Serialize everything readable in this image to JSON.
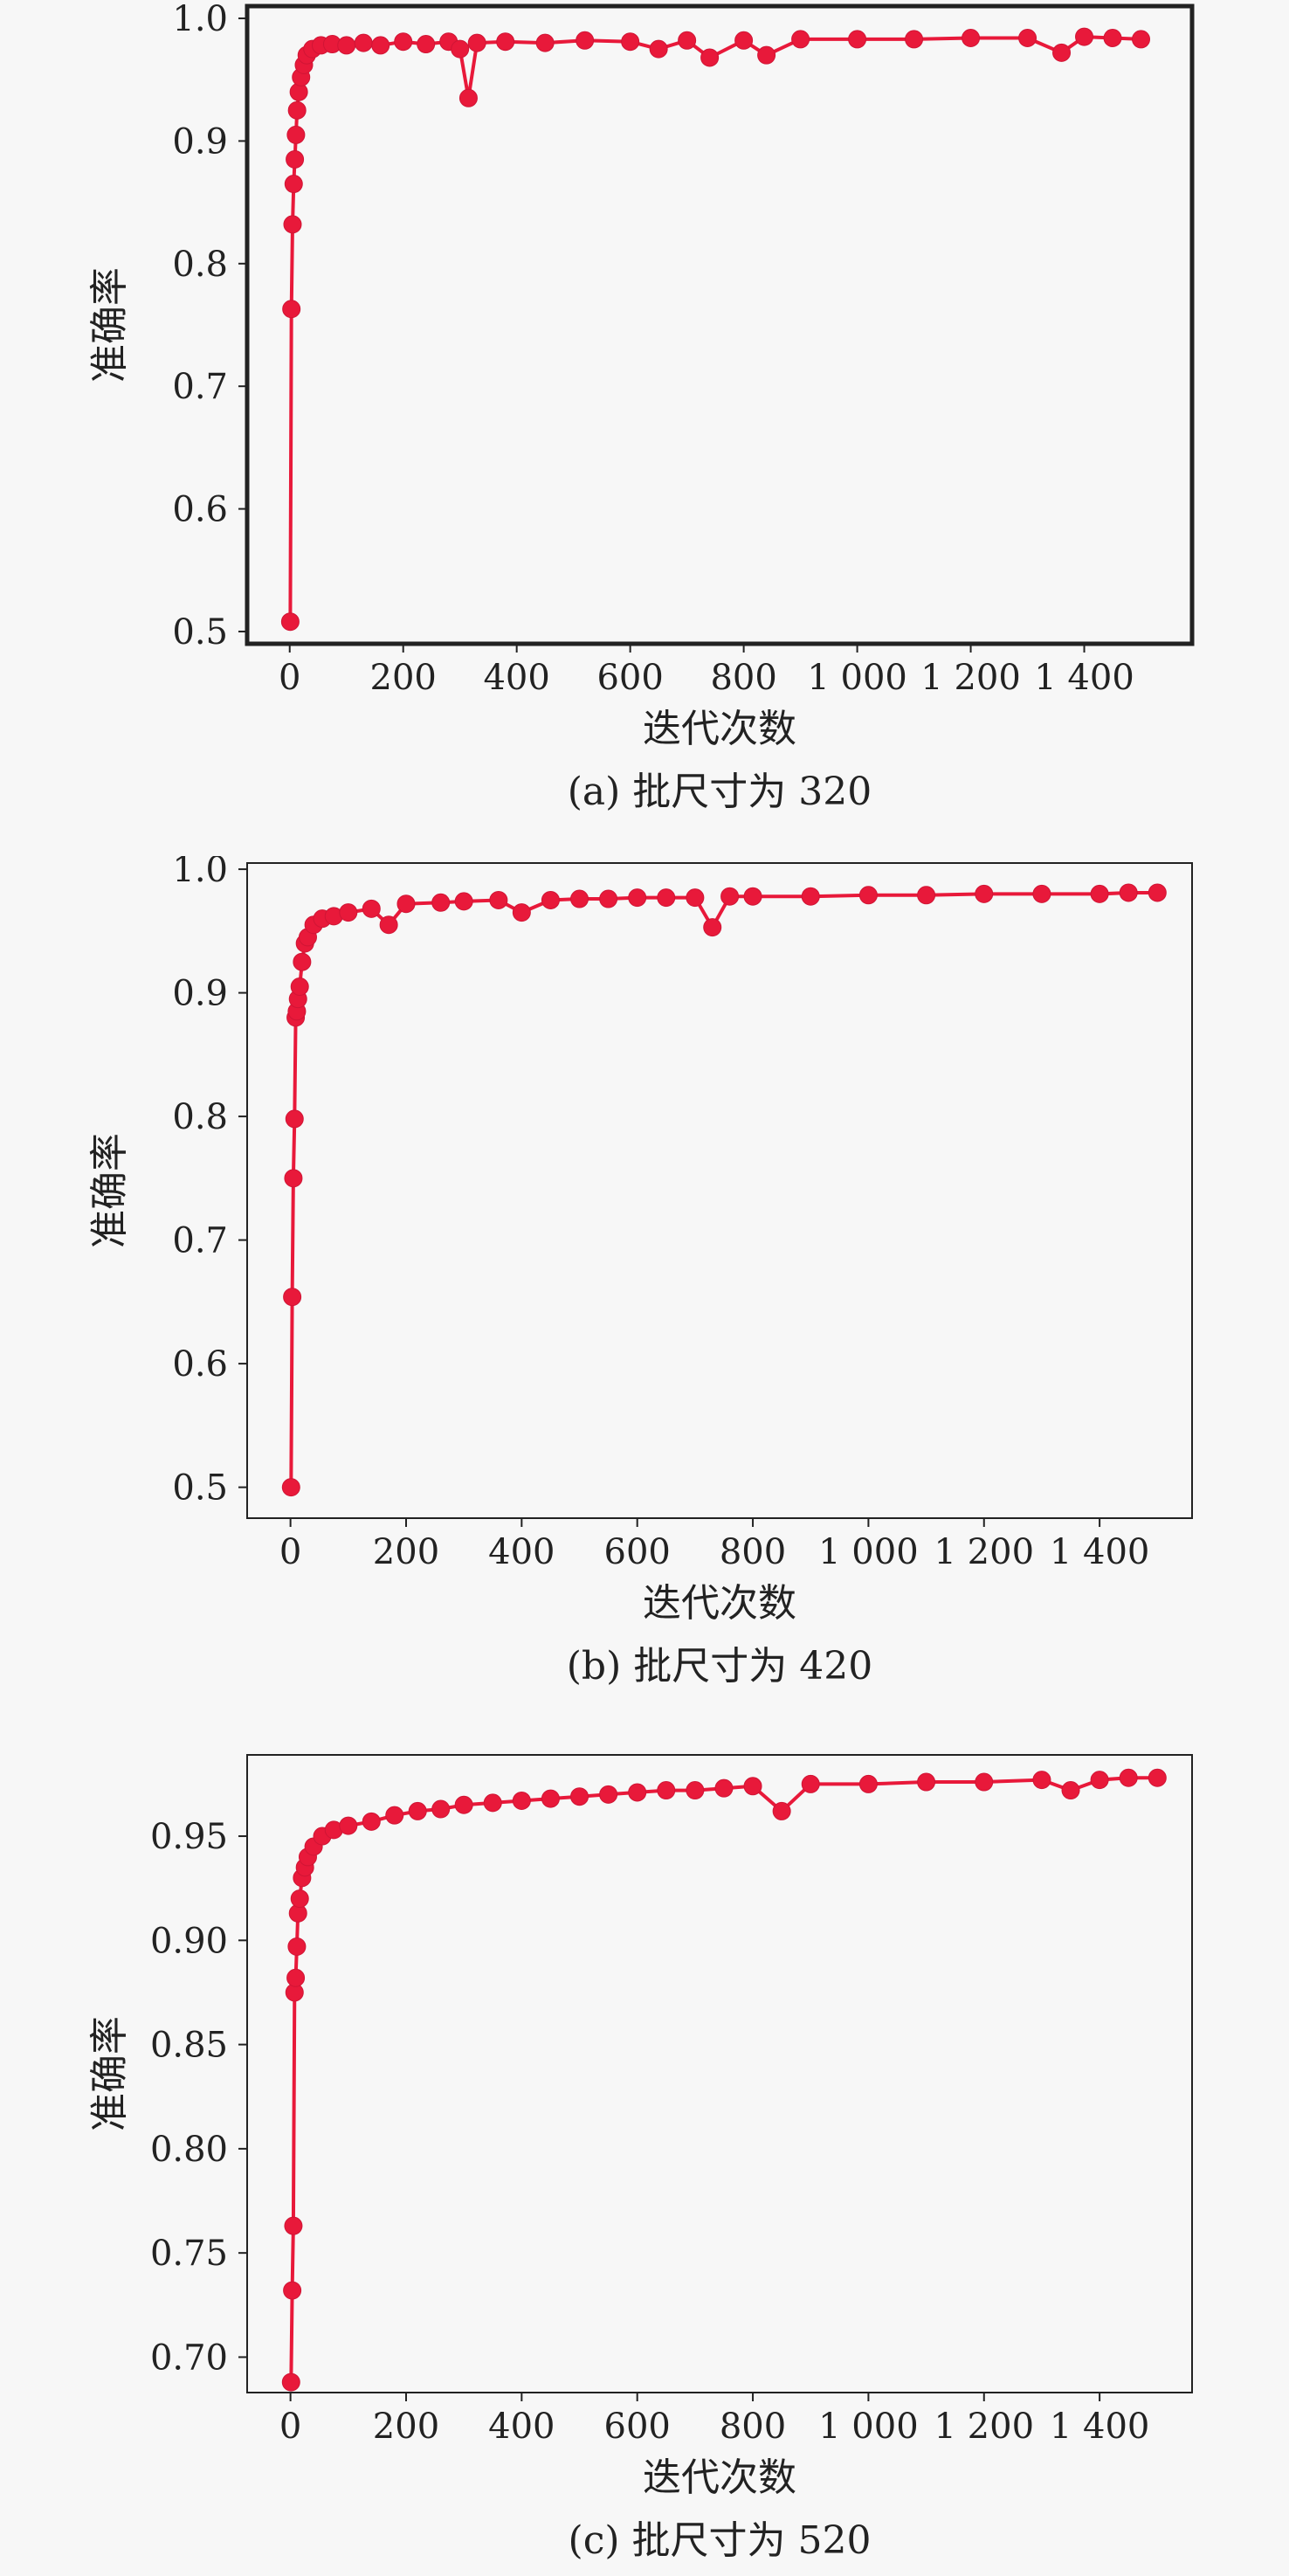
{
  "colors": {
    "series": "#e8193a",
    "axis": "#222222",
    "background": "#f7f7f7"
  },
  "chart_data": [
    {
      "type": "line",
      "caption": "(a) 批尺寸为 320",
      "xlabel": "迭代次数",
      "ylabel": "准确率",
      "xlim": [
        -75,
        1590
      ],
      "ylim": [
        0.49,
        1.01
      ],
      "xticks": [
        0,
        200,
        400,
        600,
        800,
        1000,
        1200,
        1400
      ],
      "xtick_labels": [
        "0",
        "200",
        "400",
        "600",
        "800",
        "1 000",
        "1 200",
        "1 400"
      ],
      "yticks": [
        0.5,
        0.6,
        0.7,
        0.8,
        0.9,
        1.0
      ],
      "ytick_labels": [
        "0.5",
        "0.6",
        "0.7",
        "0.8",
        "0.9",
        "1.0"
      ],
      "grid": false,
      "series": [
        {
          "x": [
            1,
            3,
            5,
            7,
            9,
            11,
            13,
            16,
            20,
            25,
            30,
            40,
            55,
            75,
            100,
            130,
            160,
            200,
            240,
            280,
            300,
            315,
            330,
            380,
            450,
            520,
            600,
            650,
            700,
            740,
            800,
            840,
            900,
            1000,
            1100,
            1200,
            1300,
            1360,
            1400,
            1450,
            1500
          ],
          "y": [
            0.508,
            0.763,
            0.832,
            0.865,
            0.885,
            0.905,
            0.925,
            0.94,
            0.952,
            0.962,
            0.97,
            0.975,
            0.978,
            0.979,
            0.978,
            0.98,
            0.978,
            0.981,
            0.979,
            0.981,
            0.975,
            0.935,
            0.98,
            0.981,
            0.98,
            0.982,
            0.981,
            0.975,
            0.982,
            0.968,
            0.982,
            0.97,
            0.983,
            0.983,
            0.983,
            0.984,
            0.984,
            0.972,
            0.985,
            0.984,
            0.983
          ]
        }
      ]
    },
    {
      "type": "line",
      "caption": "(b) 批尺寸为 420",
      "xlabel": "迭代次数",
      "ylabel": "准确率",
      "xlim": [
        -75,
        1560
      ],
      "ylim": [
        0.475,
        1.005
      ],
      "xticks": [
        0,
        200,
        400,
        600,
        800,
        1000,
        1200,
        1400
      ],
      "xtick_labels": [
        "0",
        "200",
        "400",
        "600",
        "800",
        "1 000",
        "1 200",
        "1 400"
      ],
      "yticks": [
        0.5,
        0.6,
        0.7,
        0.8,
        0.9,
        1.0
      ],
      "ytick_labels": [
        "0.5",
        "0.6",
        "0.7",
        "0.8",
        "0.9",
        "1.0"
      ],
      "grid": false,
      "series": [
        {
          "x": [
            1,
            3,
            5,
            7,
            9,
            11,
            13,
            16,
            20,
            25,
            30,
            40,
            55,
            75,
            100,
            140,
            170,
            200,
            260,
            300,
            360,
            400,
            450,
            500,
            550,
            600,
            650,
            700,
            730,
            760,
            800,
            900,
            1000,
            1100,
            1200,
            1300,
            1400,
            1450,
            1500
          ],
          "y": [
            0.5,
            0.654,
            0.75,
            0.798,
            0.88,
            0.885,
            0.895,
            0.905,
            0.925,
            0.94,
            0.945,
            0.955,
            0.96,
            0.962,
            0.965,
            0.968,
            0.955,
            0.972,
            0.973,
            0.974,
            0.975,
            0.965,
            0.975,
            0.976,
            0.976,
            0.977,
            0.977,
            0.977,
            0.953,
            0.978,
            0.978,
            0.978,
            0.979,
            0.979,
            0.98,
            0.98,
            0.98,
            0.981,
            0.981
          ]
        }
      ]
    },
    {
      "type": "line",
      "caption": "(c) 批尺寸为 520",
      "xlabel": "迭代次数",
      "ylabel": "准确率",
      "xlim": [
        -75,
        1560
      ],
      "ylim": [
        0.683,
        0.989
      ],
      "xticks": [
        0,
        200,
        400,
        600,
        800,
        1000,
        1200,
        1400
      ],
      "xtick_labels": [
        "0",
        "200",
        "400",
        "600",
        "800",
        "1 000",
        "1 200",
        "1 400"
      ],
      "yticks": [
        0.7,
        0.75,
        0.8,
        0.85,
        0.9,
        0.95
      ],
      "ytick_labels": [
        "0.70",
        "0.75",
        "0.80",
        "0.85",
        "0.90",
        "0.95"
      ],
      "grid": false,
      "series": [
        {
          "x": [
            1,
            3,
            5,
            7,
            9,
            11,
            13,
            16,
            20,
            25,
            30,
            40,
            55,
            75,
            100,
            140,
            180,
            220,
            260,
            300,
            350,
            400,
            450,
            500,
            550,
            600,
            650,
            700,
            750,
            800,
            850,
            900,
            1000,
            1100,
            1200,
            1300,
            1350,
            1400,
            1450,
            1500
          ],
          "y": [
            0.688,
            0.732,
            0.763,
            0.875,
            0.882,
            0.897,
            0.913,
            0.92,
            0.93,
            0.935,
            0.94,
            0.945,
            0.95,
            0.953,
            0.955,
            0.957,
            0.96,
            0.962,
            0.963,
            0.965,
            0.966,
            0.967,
            0.968,
            0.969,
            0.97,
            0.971,
            0.972,
            0.972,
            0.973,
            0.974,
            0.962,
            0.975,
            0.975,
            0.976,
            0.976,
            0.977,
            0.972,
            0.977,
            0.978,
            0.978
          ]
        }
      ]
    }
  ]
}
